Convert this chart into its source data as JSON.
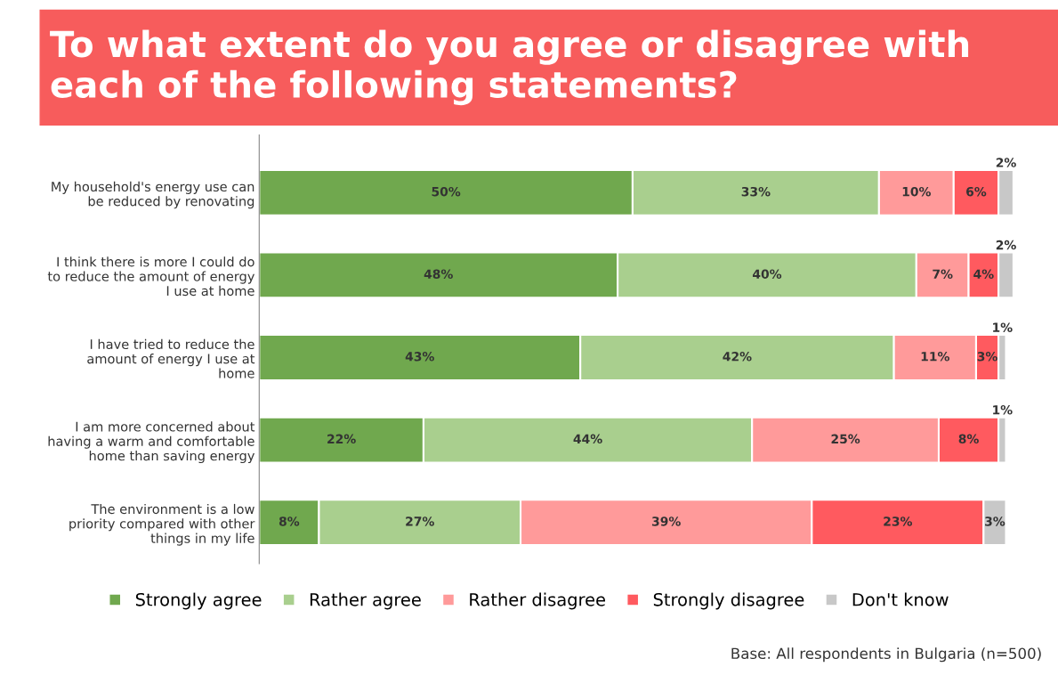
{
  "chart_data": {
    "type": "bar",
    "orientation": "horizontal",
    "stacked": true,
    "title": "To what extent do you agree or disagree with each of the following statements?",
    "categories": [
      "My household's energy use can\nbe reduced by renovating",
      "I think there is more I could do\nto reduce the amount of energy\nI use at home",
      "I have tried to reduce the\namount of energy I use at\nhome",
      "I am more concerned about\nhaving a warm and comfortable\nhome than saving energy",
      "The environment is a low\npriority compared with other\nthings in my life"
    ],
    "series": [
      {
        "name": "Strongly agree",
        "color": "#70a84e",
        "values": [
          50,
          48,
          43,
          22,
          8
        ],
        "value_labels": [
          "50%",
          "48%",
          "43%",
          "22%",
          "8%"
        ]
      },
      {
        "name": "Rather agree",
        "color": "#a9cf8e",
        "values": [
          33,
          40,
          42,
          44,
          27
        ],
        "value_labels": [
          "33%",
          "40%",
          "42%",
          "44%",
          "27%"
        ]
      },
      {
        "name": "Rather disagree",
        "color": "#ff9a9a",
        "values": [
          10,
          7,
          11,
          25,
          39
        ],
        "value_labels": [
          "10%",
          "7%",
          "11%",
          "25%",
          "39%"
        ]
      },
      {
        "name": "Strongly disagree",
        "color": "#ff5a5f",
        "values": [
          6,
          4,
          3,
          8,
          23
        ],
        "value_labels": [
          "6%",
          "4%",
          "3%",
          "8%",
          "23%"
        ]
      },
      {
        "name": "Don't know",
        "color": "#c8c8c8",
        "values": [
          2,
          2,
          1,
          1,
          3
        ],
        "value_labels": [
          "2%",
          "2%",
          "1%",
          "1%",
          "3%"
        ]
      }
    ],
    "legend": "bottom",
    "annotations": [
      "Base: All respondents in Bulgaria (n=500)"
    ]
  }
}
